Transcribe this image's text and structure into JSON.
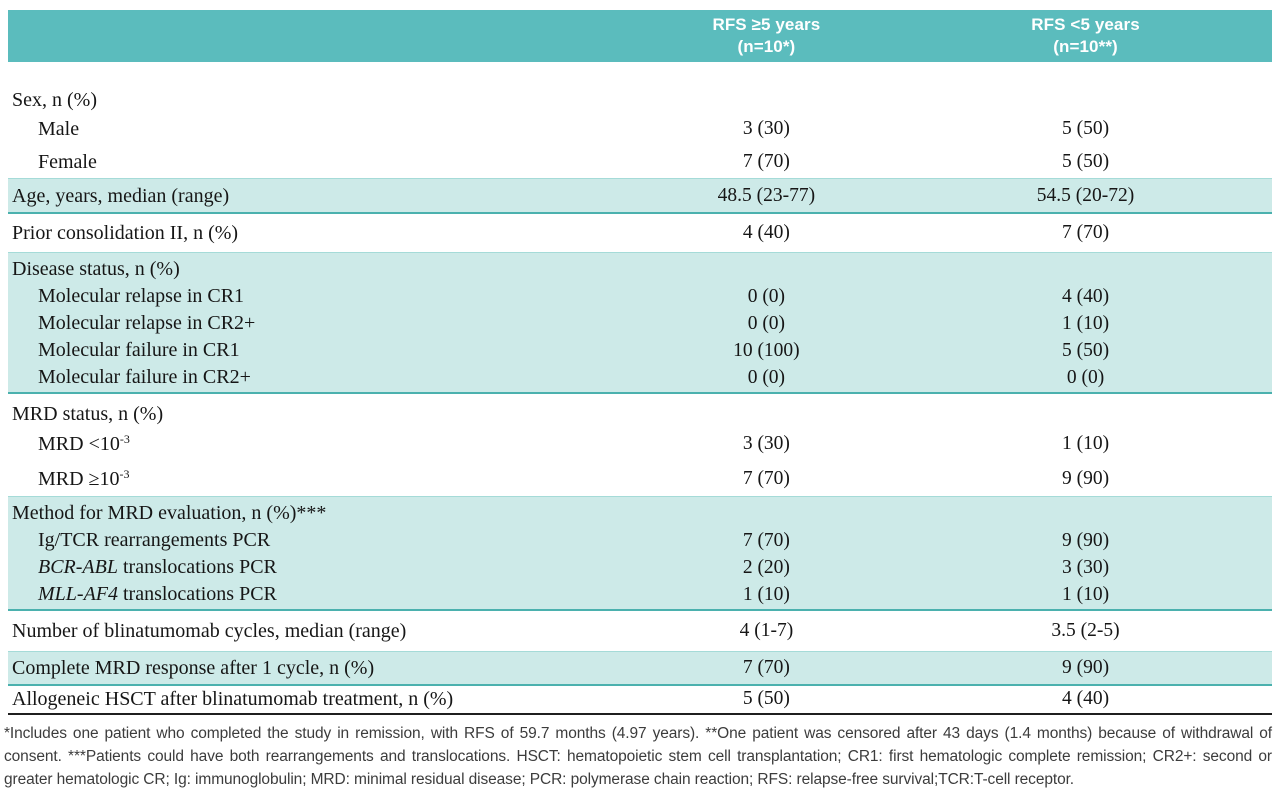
{
  "header": {
    "col1": {
      "line1": "RFS ≥5 years",
      "line2": "(n=10*)"
    },
    "col2": {
      "line1": "RFS <5 years",
      "line2": "(n=10**)"
    }
  },
  "rows": {
    "sex": {
      "label": "Sex, n (%)"
    },
    "male": {
      "label": "Male",
      "v1": "3 (30)",
      "v2": "5 (50)"
    },
    "female": {
      "label": "Female",
      "v1": "7 (70)",
      "v2": "5 (50)"
    },
    "age": {
      "label": "Age, years, median (range)",
      "v1": "48.5 (23-77)",
      "v2": "54.5 (20-72)"
    },
    "prior": {
      "label": "Prior consolidation II, n (%)",
      "v1": "4 (40)",
      "v2": "7 (70)"
    },
    "disease": {
      "label": "Disease status, n (%)"
    },
    "relapse1": {
      "label": "Molecular relapse in CR1",
      "v1": "0 (0)",
      "v2": "4 (40)"
    },
    "relapse2": {
      "label": "Molecular relapse in CR2+",
      "v1": "0 (0)",
      "v2": "1 (10)"
    },
    "failure1": {
      "label": "Molecular failure in CR1",
      "v1": "10 (100)",
      "v2": "5 (50)"
    },
    "failure2": {
      "label": "Molecular failure in CR2+",
      "v1": "0 (0)",
      "v2": "0 (0)"
    },
    "mrdhead": {
      "label": "MRD status, n (%)"
    },
    "mrdlow": {
      "label": "MRD <10",
      "sup": "-3",
      "v1": "3 (30)",
      "v2": "1 (10)"
    },
    "mrdhigh": {
      "label": "MRD ≥10",
      "sup": "-3",
      "v1": "7 (70)",
      "v2": "9 (90)"
    },
    "method": {
      "label": "Method for MRD evaluation, n (%)***"
    },
    "igtcr": {
      "label": "Ig/TCR rearrangements PCR",
      "v1": "7 (70)",
      "v2": "9 (90)"
    },
    "bcrabl": {
      "gene": "BCR-ABL",
      "label": " translocations PCR",
      "v1": "2 (20)",
      "v2": "3 (30)"
    },
    "mllaf4": {
      "gene": "MLL-AF4",
      "label": " translocations PCR",
      "v1": "1 (10)",
      "v2": "1 (10)"
    },
    "cycles": {
      "label": "Number of blinatumomab cycles, median (range)",
      "v1": "4 (1-7)",
      "v2": "3.5 (2-5)"
    },
    "complete": {
      "label": "Complete MRD response after 1 cycle, n (%)",
      "v1": "7 (70)",
      "v2": "9 (90)"
    },
    "allo": {
      "label": "Allogeneic HSCT after blinatumomab treatment, n (%)",
      "v1": "5 (50)",
      "v2": "4 (40)"
    }
  },
  "footnote": {
    "text": "*Includes one patient who completed the study in remission, with RFS of 59.7 months (4.97 years). **One patient was censored after 43 days (1.4 months) because of withdrawal of consent. ***Patients could have both rearrangements and translocations. HSCT: hematopoietic stem cell transplantation; CR1: first hematologic complete remission; CR2+: second or greater hematologic CR; Ig: immunoglobulin; MRD: minimal residual disease; PCR: polymerase chain reaction; RFS: relapse-free survival;TCR:T-cell receptor."
  },
  "colors": {
    "header_teal": "#5bbcbd",
    "stripe_fill": "#cdeae8",
    "stripe_border": "#4bb1ae",
    "stripe_border_light": "#a5dbd8",
    "bottom_rule": "#1f1f1f",
    "header_text": "#ffffff",
    "body_text": "#161616",
    "footnote_text": "#3c3c3c"
  }
}
